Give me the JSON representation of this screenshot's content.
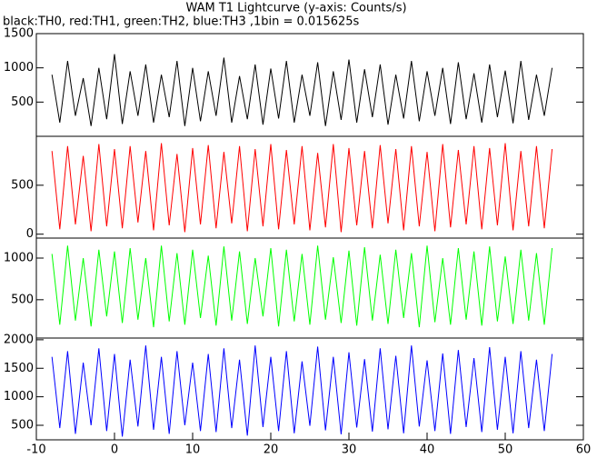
{
  "chart_data": [
    {
      "type": "line",
      "title": "WAM T1 Lightcurve (y-axis: Counts/s)",
      "subtitle": "black:TH0, red:TH1, green:TH2, blue:TH3 ,1bin = 0.015625s",
      "x": [
        -8,
        -7,
        -6,
        -5,
        -4,
        -3,
        -2,
        -1,
        0,
        1,
        2,
        3,
        4,
        5,
        6,
        7,
        8,
        9,
        10,
        11,
        12,
        13,
        14,
        15,
        16,
        17,
        18,
        19,
        20,
        21,
        22,
        23,
        24,
        25,
        26,
        27,
        28,
        29,
        30,
        31,
        32,
        33,
        34,
        35,
        36,
        37,
        38,
        39,
        40,
        41,
        42,
        43,
        44,
        45,
        46,
        47,
        48,
        49,
        50,
        51,
        52,
        53,
        54,
        55,
        56
      ],
      "xlim": [
        -10,
        60
      ],
      "ylim": [
        0,
        1500
      ],
      "yticks": [
        500,
        1000,
        1500
      ],
      "series": [
        {
          "color": "#000000",
          "values": [
            900,
            200,
            1100,
            300,
            850,
            150,
            1000,
            250,
            1200,
            180,
            950,
            300,
            1050,
            200,
            900,
            280,
            1100,
            150,
            1000,
            220,
            950,
            300,
            1150,
            200,
            880,
            250,
            1050,
            170,
            990,
            260,
            1100,
            200,
            900,
            300,
            1080,
            150,
            950,
            240,
            1120,
            200,
            980,
            280,
            1050,
            170,
            900,
            260,
            1100,
            220,
            950,
            300,
            1000,
            180,
            1080,
            250,
            920,
            200,
            1050,
            280,
            960,
            190,
            1100,
            240,
            900,
            300,
            1000
          ]
        }
      ]
    },
    {
      "type": "line",
      "x": [
        -8,
        -7,
        -6,
        -5,
        -4,
        -3,
        -2,
        -1,
        0,
        1,
        2,
        3,
        4,
        5,
        6,
        7,
        8,
        9,
        10,
        11,
        12,
        13,
        14,
        15,
        16,
        17,
        18,
        19,
        20,
        21,
        22,
        23,
        24,
        25,
        26,
        27,
        28,
        29,
        30,
        31,
        32,
        33,
        34,
        35,
        36,
        37,
        38,
        39,
        40,
        41,
        42,
        43,
        44,
        45,
        46,
        47,
        48,
        49,
        50,
        51,
        52,
        53,
        54,
        55,
        56
      ],
      "xlim": [
        -10,
        60
      ],
      "ylim": [
        -40,
        1000
      ],
      "yticks": [
        0,
        500
      ],
      "series": [
        {
          "color": "#ff0000",
          "values": [
            850,
            50,
            900,
            100,
            800,
            30,
            920,
            80,
            870,
            60,
            900,
            120,
            850,
            40,
            930,
            90,
            820,
            20,
            880,
            100,
            910,
            60,
            840,
            110,
            900,
            30,
            870,
            80,
            920,
            50,
            860,
            100,
            900,
            40,
            830,
            70,
            920,
            20,
            880,
            90,
            850,
            60,
            910,
            110,
            870,
            40,
            900,
            80,
            840,
            30,
            920,
            70,
            860,
            100,
            900,
            50,
            880,
            90,
            930,
            40,
            850,
            80,
            900,
            60,
            870
          ]
        }
      ]
    },
    {
      "type": "line",
      "x": [
        -8,
        -7,
        -6,
        -5,
        -4,
        -3,
        -2,
        -1,
        0,
        1,
        2,
        3,
        4,
        5,
        6,
        7,
        8,
        9,
        10,
        11,
        12,
        13,
        14,
        15,
        16,
        17,
        18,
        19,
        20,
        21,
        22,
        23,
        24,
        25,
        26,
        27,
        28,
        29,
        30,
        31,
        32,
        33,
        34,
        35,
        36,
        37,
        38,
        39,
        40,
        41,
        42,
        43,
        44,
        45,
        46,
        47,
        48,
        49,
        50,
        51,
        52,
        53,
        54,
        55,
        56
      ],
      "xlim": [
        -10,
        60
      ],
      "ylim": [
        40,
        1240
      ],
      "yticks": [
        500,
        1000
      ],
      "series": [
        {
          "color": "#00ff00",
          "values": [
            1050,
            200,
            1150,
            250,
            1000,
            180,
            1100,
            300,
            1080,
            220,
            1120,
            260,
            1000,
            170,
            1150,
            240,
            1060,
            200,
            1100,
            280,
            1030,
            190,
            1140,
            250,
            1080,
            210,
            1000,
            300,
            1120,
            180,
            1100,
            240,
            1050,
            200,
            1150,
            260,
            1010,
            220,
            1090,
            190,
            1130,
            250,
            1040,
            210,
            1100,
            280,
            1060,
            170,
            1150,
            230,
            1000,
            200,
            1120,
            260,
            1080,
            190,
            1140,
            240,
            1020,
            210,
            1100,
            250,
            1060,
            200,
            1120
          ]
        }
      ]
    },
    {
      "type": "line",
      "x": [
        -8,
        -7,
        -6,
        -5,
        -4,
        -3,
        -2,
        -1,
        0,
        1,
        2,
        3,
        4,
        5,
        6,
        7,
        8,
        9,
        10,
        11,
        12,
        13,
        14,
        15,
        16,
        17,
        18,
        19,
        20,
        21,
        22,
        23,
        24,
        25,
        26,
        27,
        28,
        29,
        30,
        31,
        32,
        33,
        34,
        35,
        36,
        37,
        38,
        39,
        40,
        41,
        42,
        43,
        44,
        45,
        46,
        47,
        48,
        49,
        50,
        51,
        52,
        53,
        54,
        55,
        56
      ],
      "xlim": [
        -10,
        60
      ],
      "xticks": [
        -10,
        0,
        10,
        20,
        30,
        40,
        50,
        60
      ],
      "ylim": [
        245,
        2030
      ],
      "yticks": [
        500,
        1000,
        1500,
        2000
      ],
      "series": [
        {
          "color": "#0000ff",
          "values": [
            1700,
            450,
            1800,
            350,
            1600,
            500,
            1850,
            400,
            1750,
            300,
            1650,
            480,
            1900,
            420,
            1700,
            350,
            1800,
            500,
            1600,
            400,
            1750,
            380,
            1850,
            450,
            1650,
            320,
            1900,
            470,
            1700,
            400,
            1800,
            360,
            1620,
            490,
            1880,
            410,
            1700,
            340,
            1780,
            460,
            1660,
            390,
            1850,
            430,
            1720,
            360,
            1900,
            480,
            1640,
            400,
            1760,
            350,
            1820,
            470,
            1680,
            380,
            1870,
            420,
            1700,
            360,
            1800,
            450,
            1650,
            400,
            1750
          ]
        }
      ]
    }
  ]
}
